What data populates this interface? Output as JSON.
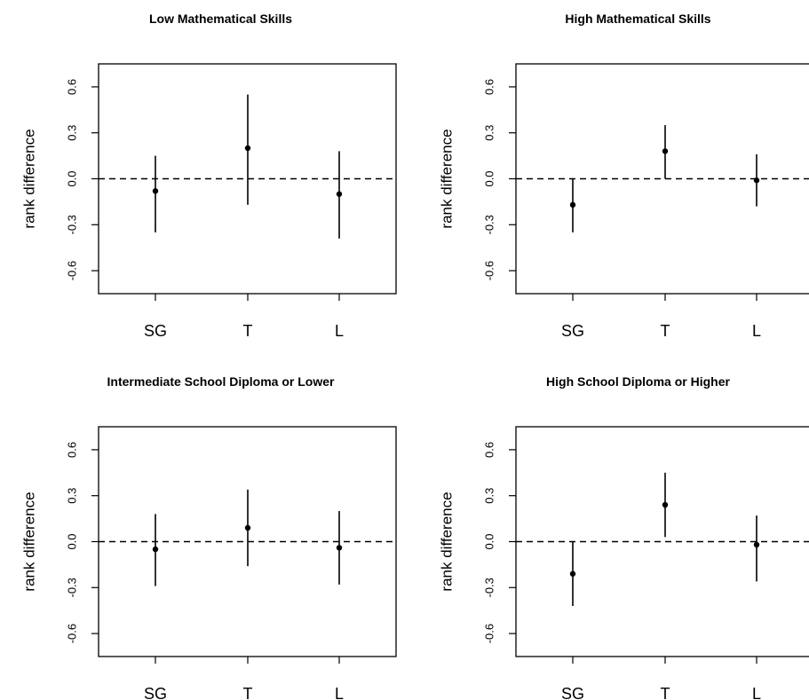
{
  "chart_data": [
    {
      "type": "errorbar",
      "title": "Low Mathematical Skills",
      "xlabel": "",
      "ylabel": "rank difference",
      "categories": [
        "SG",
        "T",
        "L"
      ],
      "estimates": [
        -0.08,
        0.2,
        -0.1
      ],
      "lower": [
        -0.35,
        -0.17,
        -0.39
      ],
      "upper": [
        0.15,
        0.55,
        0.18
      ],
      "yticks": [
        "-0.6",
        "-0.3",
        "0.0",
        "0.3",
        "0.6"
      ],
      "ylim": [
        -0.75,
        0.75
      ],
      "reference_line": 0,
      "grid": false
    },
    {
      "type": "errorbar",
      "title": "High Mathematical Skills",
      "xlabel": "",
      "ylabel": "rank difference",
      "categories": [
        "SG",
        "T",
        "L"
      ],
      "estimates": [
        -0.17,
        0.18,
        -0.01
      ],
      "lower": [
        -0.35,
        0.0,
        -0.18
      ],
      "upper": [
        0.0,
        0.35,
        0.16
      ],
      "yticks": [
        "-0.6",
        "-0.3",
        "0.0",
        "0.3",
        "0.6"
      ],
      "ylim": [
        -0.75,
        0.75
      ],
      "reference_line": 0,
      "grid": false
    },
    {
      "type": "errorbar",
      "title": "Intermediate School Diploma or Lower",
      "xlabel": "",
      "ylabel": "rank difference",
      "categories": [
        "SG",
        "T",
        "L"
      ],
      "estimates": [
        -0.05,
        0.09,
        -0.04
      ],
      "lower": [
        -0.29,
        -0.16,
        -0.28
      ],
      "upper": [
        0.18,
        0.34,
        0.2
      ],
      "yticks": [
        "-0.6",
        "-0.3",
        "0.0",
        "0.3",
        "0.6"
      ],
      "ylim": [
        -0.75,
        0.75
      ],
      "reference_line": 0,
      "grid": false
    },
    {
      "type": "errorbar",
      "title": "High School Diploma or Higher",
      "xlabel": "",
      "ylabel": "rank difference",
      "categories": [
        "SG",
        "T",
        "L"
      ],
      "estimates": [
        -0.21,
        0.24,
        -0.02
      ],
      "lower": [
        -0.42,
        0.03,
        -0.26
      ],
      "upper": [
        0.0,
        0.45,
        0.17
      ],
      "yticks": [
        "-0.6",
        "-0.3",
        "0.0",
        "0.3",
        "0.6"
      ],
      "ylim": [
        -0.75,
        0.75
      ],
      "reference_line": 0,
      "grid": false
    }
  ]
}
